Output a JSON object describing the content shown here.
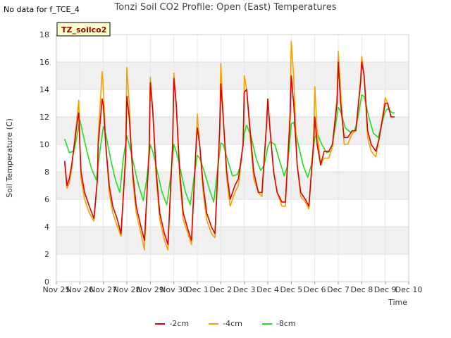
{
  "header": {
    "no_data_text": "No data for f_TCE_4",
    "title": "Tonzi Soil CO2 Profile: Open (East) Temperatures"
  },
  "chart_data": {
    "type": "line",
    "title": "Tonzi Soil CO2 Profile: Open (East) Temperatures",
    "xlabel": "Time",
    "ylabel": "Soil Temperature (C)",
    "xlim": [
      0,
      15
    ],
    "ylim": [
      0,
      18
    ],
    "y_ticks": [
      0,
      2,
      4,
      6,
      8,
      10,
      12,
      14,
      16,
      18
    ],
    "x_ticks": [
      {
        "value": 0,
        "label": "Nov 25"
      },
      {
        "value": 1,
        "label": "Nov 26"
      },
      {
        "value": 2,
        "label": "Nov 27"
      },
      {
        "value": 3,
        "label": "Nov 28"
      },
      {
        "value": 4,
        "label": "Nov 29"
      },
      {
        "value": 5,
        "label": "Nov 30"
      },
      {
        "value": 6,
        "label": "Dec 1"
      },
      {
        "value": 7,
        "label": "Dec 2"
      },
      {
        "value": 8,
        "label": "Dec 3"
      },
      {
        "value": 9,
        "label": "Dec 4"
      },
      {
        "value": 10,
        "label": "Dec 5"
      },
      {
        "value": 11,
        "label": "Dec 6"
      },
      {
        "value": 12,
        "label": "Dec 7"
      },
      {
        "value": 13,
        "label": "Dec 8"
      },
      {
        "value": 14,
        "label": "Dec 9"
      },
      {
        "value": 15,
        "label": "Dec 10"
      }
    ],
    "grid": "horizontal bands",
    "legend_position": "bottom-center",
    "annotation": "TZ_soilco2",
    "series": [
      {
        "name": "-2cm",
        "color": "#dd0000",
        "x": [
          0.35,
          0.45,
          0.55,
          0.65,
          0.9,
          0.95,
          1.0,
          1.05,
          1.2,
          1.4,
          1.6,
          1.75,
          1.78,
          1.95,
          2.0,
          2.1,
          2.25,
          2.4,
          2.6,
          2.75,
          2.95,
          3.0,
          3.1,
          3.25,
          3.4,
          3.6,
          3.75,
          3.95,
          4.0,
          4.1,
          4.25,
          4.4,
          4.6,
          4.75,
          4.95,
          5.0,
          5.1,
          5.25,
          5.4,
          5.6,
          5.75,
          5.95,
          6.0,
          6.1,
          6.25,
          6.4,
          6.6,
          6.75,
          6.95,
          7.0,
          7.1,
          7.25,
          7.4,
          7.6,
          7.75,
          7.95,
          8.0,
          8.1,
          8.25,
          8.4,
          8.6,
          8.75,
          8.95,
          9.0,
          9.1,
          9.25,
          9.4,
          9.6,
          9.75,
          9.95,
          10.0,
          10.1,
          10.25,
          10.4,
          10.6,
          10.75,
          10.95,
          11.0,
          11.1,
          11.25,
          11.4,
          11.6,
          11.75,
          11.95,
          12.0,
          12.1,
          12.25,
          12.4,
          12.6,
          12.75,
          12.95,
          13.0,
          13.1,
          13.25,
          13.4,
          13.6,
          13.75,
          13.95,
          14.0,
          14.1,
          14.25,
          14.4
        ],
        "values": [
          8.8,
          7.0,
          7.5,
          8.5,
          11.8,
          12.3,
          10.0,
          8.0,
          6.5,
          5.5,
          4.6,
          7.5,
          10.0,
          13.3,
          12.8,
          10.0,
          7.0,
          5.5,
          4.5,
          3.5,
          9.0,
          13.5,
          12.0,
          8.0,
          5.5,
          4.0,
          3.0,
          9.5,
          14.5,
          12.5,
          8.0,
          5.0,
          3.5,
          2.7,
          10.0,
          14.8,
          13.0,
          8.0,
          5.0,
          3.8,
          3.0,
          10.0,
          11.2,
          10.0,
          7.0,
          5.0,
          4.0,
          3.5,
          11.0,
          14.4,
          12.0,
          8.0,
          6.0,
          7.0,
          7.5,
          10.0,
          13.8,
          14.0,
          11.0,
          8.0,
          6.5,
          6.5,
          11.5,
          13.3,
          11.0,
          8.0,
          6.5,
          5.8,
          5.8,
          12.0,
          15.0,
          13.0,
          8.5,
          6.5,
          6.0,
          5.5,
          10.0,
          12.0,
          10.0,
          8.5,
          9.5,
          9.5,
          10.0,
          13.0,
          16.0,
          13.0,
          10.5,
          10.5,
          11.0,
          11.0,
          14.5,
          16.0,
          15.0,
          11.0,
          10.0,
          9.5,
          10.5,
          12.5,
          13.0,
          13.0,
          12.0,
          12.0
        ]
      },
      {
        "name": "-4cm",
        "color": "#f5a000",
        "x": [
          0.35,
          0.45,
          0.55,
          0.65,
          0.9,
          0.95,
          1.0,
          1.05,
          1.2,
          1.4,
          1.6,
          1.75,
          1.78,
          1.95,
          2.0,
          2.1,
          2.25,
          2.4,
          2.6,
          2.75,
          2.95,
          3.0,
          3.1,
          3.25,
          3.4,
          3.6,
          3.75,
          3.95,
          4.0,
          4.1,
          4.25,
          4.4,
          4.6,
          4.75,
          4.95,
          5.0,
          5.1,
          5.25,
          5.4,
          5.6,
          5.75,
          5.95,
          6.0,
          6.1,
          6.25,
          6.4,
          6.6,
          6.75,
          6.95,
          7.0,
          7.1,
          7.25,
          7.4,
          7.6,
          7.75,
          7.95,
          8.0,
          8.1,
          8.25,
          8.4,
          8.6,
          8.75,
          8.95,
          9.0,
          9.1,
          9.25,
          9.4,
          9.6,
          9.75,
          9.95,
          10.0,
          10.1,
          10.25,
          10.4,
          10.6,
          10.75,
          10.95,
          11.0,
          11.1,
          11.25,
          11.4,
          11.6,
          11.75,
          11.95,
          12.0,
          12.1,
          12.25,
          12.4,
          12.6,
          12.75,
          12.95,
          13.0,
          13.1,
          13.25,
          13.4,
          13.6,
          13.75,
          13.95,
          14.0,
          14.1,
          14.25,
          14.4
        ],
        "values": [
          8.6,
          6.8,
          7.2,
          8.2,
          12.3,
          13.2,
          10.0,
          7.5,
          6.0,
          5.0,
          4.4,
          7.5,
          10.5,
          15.3,
          14.0,
          10.0,
          6.5,
          5.0,
          4.0,
          3.3,
          9.5,
          15.6,
          13.0,
          7.5,
          5.0,
          3.5,
          2.3,
          10.0,
          14.9,
          12.5,
          7.5,
          4.5,
          3.0,
          2.3,
          10.0,
          15.2,
          13.0,
          7.5,
          4.5,
          3.5,
          2.7,
          10.0,
          12.2,
          10.0,
          6.5,
          4.5,
          3.5,
          3.2,
          11.0,
          15.9,
          12.0,
          7.5,
          5.5,
          6.5,
          7.0,
          10.0,
          15.0,
          14.0,
          10.5,
          7.5,
          6.5,
          6.2,
          11.5,
          13.3,
          11.0,
          8.0,
          6.5,
          5.5,
          5.5,
          12.5,
          17.5,
          15.0,
          8.5,
          6.2,
          5.8,
          5.3,
          10.5,
          14.2,
          11.0,
          8.5,
          9.0,
          9.0,
          9.8,
          13.5,
          16.8,
          14.0,
          10.0,
          10.0,
          10.8,
          11.0,
          14.8,
          16.4,
          15.0,
          10.5,
          9.5,
          9.1,
          10.5,
          12.8,
          13.4,
          13.0,
          12.0,
          12.0
        ]
      },
      {
        "name": "-8cm",
        "color": "#22dd22",
        "x": [
          0.35,
          0.55,
          0.75,
          0.95,
          1.0,
          1.1,
          1.3,
          1.5,
          1.7,
          1.85,
          2.0,
          2.1,
          2.3,
          2.5,
          2.7,
          2.85,
          3.0,
          3.1,
          3.3,
          3.5,
          3.7,
          3.85,
          4.0,
          4.1,
          4.3,
          4.5,
          4.7,
          4.85,
          5.0,
          5.1,
          5.3,
          5.5,
          5.7,
          5.85,
          6.0,
          6.1,
          6.3,
          6.5,
          6.7,
          6.85,
          7.0,
          7.1,
          7.3,
          7.5,
          7.7,
          7.85,
          8.0,
          8.1,
          8.3,
          8.5,
          8.7,
          8.85,
          9.0,
          9.1,
          9.3,
          9.5,
          9.7,
          9.85,
          10.0,
          10.1,
          10.3,
          10.5,
          10.7,
          10.85,
          11.0,
          11.1,
          11.3,
          11.5,
          11.7,
          11.85,
          12.0,
          12.1,
          12.3,
          12.5,
          12.7,
          12.85,
          13.0,
          13.1,
          13.3,
          13.5,
          13.7,
          13.85,
          14.0,
          14.1,
          14.3,
          14.4
        ],
        "values": [
          10.4,
          9.4,
          9.5,
          11.3,
          11.8,
          11.0,
          9.5,
          8.2,
          7.4,
          9.5,
          11.3,
          10.8,
          9.0,
          7.5,
          6.5,
          9.0,
          10.6,
          10.0,
          8.5,
          7.0,
          5.9,
          7.5,
          10.0,
          9.5,
          8.0,
          6.5,
          5.6,
          7.5,
          10.0,
          9.5,
          8.0,
          6.5,
          5.6,
          7.5,
          9.2,
          9.0,
          8.0,
          6.8,
          5.8,
          8.0,
          10.1,
          10.0,
          8.8,
          7.7,
          7.8,
          8.5,
          10.8,
          11.4,
          10.5,
          9.0,
          8.1,
          8.5,
          9.8,
          10.2,
          10.0,
          8.8,
          7.7,
          8.5,
          11.5,
          11.6,
          10.0,
          8.5,
          7.6,
          8.5,
          10.5,
          10.8,
          10.0,
          9.4,
          9.5,
          11.0,
          12.7,
          12.4,
          11.2,
          10.9,
          11.0,
          12.0,
          13.6,
          13.5,
          12.0,
          10.8,
          10.5,
          11.5,
          12.4,
          12.6,
          12.3,
          12.3
        ]
      }
    ]
  }
}
